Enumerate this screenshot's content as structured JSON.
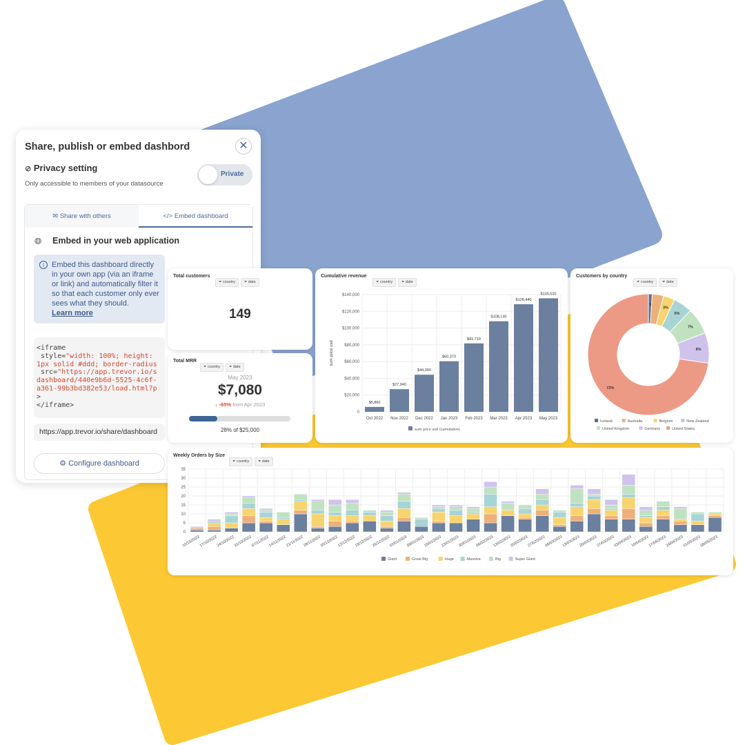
{
  "colors": {
    "blue_shape": "#8aa4cf",
    "yellow_shape": "#fcc934",
    "bar": "#6b7f9e",
    "accent": "#4a6a9a",
    "negative": "#e0442b"
  },
  "share_panel": {
    "title": "Share, publish or embed dashbord",
    "close_icon": "close-icon",
    "privacy": {
      "title": "Privacy setting",
      "subtitle": "Only accessible to members of your datasource",
      "toggle_label": "Private"
    },
    "tabs": [
      {
        "label": "Share with others",
        "icon": "mail-plus-icon"
      },
      {
        "label": "Embed dashboard",
        "icon": "code-window-icon",
        "active": true
      }
    ],
    "embed_title": "Embed in your web application",
    "info_text": "Embed this dashboard directly in your own app (via an iframe or link) and automatically filter it so that each customer only ever sees what they should.",
    "learn_more": "Learn more",
    "code": {
      "l1": "<iframe",
      "l2a": " style=",
      "l2b": "\"width: 100%; height: ",
      "l3": "1px solid #ddd; border-radius",
      "l4a": " src=",
      "l4b": "\"https://app.trevor.io/s",
      "l5": "dashboard/440e9b6d-5525-4c6f-",
      "l6": "a361-99b3bd382e53/load.html?p",
      "l7": ">",
      "l8": "</iframe>"
    },
    "share_url": "https://app.trevor.io/share/dashboard",
    "configure_label": "Configure dashboard"
  },
  "filters": {
    "country": "country",
    "date": "date"
  },
  "total_customers": {
    "title": "Total customers",
    "value": "149"
  },
  "total_mrr": {
    "title": "Total MRR",
    "period": "May 2023",
    "value": "$7,080",
    "change": "-65%",
    "change_suffix": "from Apr 2023",
    "progress_label": "28% of $25,000",
    "progress": 0.28
  },
  "chart_data": [
    {
      "type": "bar",
      "title": "Cumulative revenue",
      "ylabel": "sum price usd",
      "ylim": [
        0,
        140000
      ],
      "yticks": [
        "0",
        "$20,000",
        "$40,000",
        "$60,000",
        "$80,000",
        "$100,000",
        "$120,000",
        "$140,000"
      ],
      "categories": [
        "Oct 2022",
        "Nov 2022",
        "Dec 2022",
        "Jan 2023",
        "Feb 2023",
        "Mar 2023",
        "Apr 2023",
        "May 2023"
      ],
      "values": [
        5860,
        27040,
        44300,
        60370,
        81710,
        108130,
        128440,
        135520
      ],
      "labels": [
        "$5,860",
        "$27,040",
        "$44,300",
        "$60,370",
        "$81,710",
        "$108,130",
        "$128,440",
        "$135,520"
      ],
      "legend": "sum price usd (cumulative)",
      "grid": true
    },
    {
      "type": "pie",
      "title": "Customers by country",
      "donut": true,
      "slices": [
        {
          "name": "Iceland",
          "value": 1,
          "label": "1%",
          "color": "#5b6f94"
        },
        {
          "name": "Australia",
          "value": 3,
          "label": "",
          "color": "#eeb07a"
        },
        {
          "name": "Belgium",
          "value": 3,
          "label": "3%",
          "color": "#f8d46e"
        },
        {
          "name": "New Zealand",
          "value": 5,
          "label": "5%",
          "color": "#a9d4d6"
        },
        {
          "name": "United Kingdom",
          "value": 7,
          "label": "7%",
          "color": "#c0e2c1"
        },
        {
          "name": "Germany",
          "value": 8,
          "label": "8%",
          "color": "#cfc3ec"
        },
        {
          "name": "United States",
          "value": 72,
          "label": "72%",
          "color": "#ec9a85"
        }
      ],
      "legend": "bottom"
    },
    {
      "type": "bar",
      "stacked": true,
      "title": "Weekly Orders by Size",
      "ylim": [
        0,
        35
      ],
      "yticks": [
        0,
        5,
        10,
        15,
        20,
        25,
        30,
        35
      ],
      "grid": true,
      "legend": "bottom",
      "categories": [
        "10/10/2022",
        "17/10/2022",
        "24/10/2022",
        "31/10/2022",
        "07/11/2022",
        "14/11/2022",
        "21/11/2022",
        "28/11/2022",
        "05/12/2022",
        "12/12/2022",
        "19/12/2022",
        "26/12/2022",
        "02/01/2023",
        "09/01/2023",
        "16/01/2023",
        "23/01/2023",
        "30/01/2023",
        "06/02/2023",
        "13/02/2023",
        "20/02/2023",
        "27/02/2023",
        "06/03/2023",
        "13/03/2023",
        "20/03/2023",
        "27/03/2023",
        "03/04/2023",
        "10/04/2023",
        "17/04/2023",
        "24/04/2023",
        "01/05/2023",
        "08/05/2023"
      ],
      "series": [
        {
          "name": "Giant",
          "color": "#6b7f9e",
          "values": [
            1,
            1,
            2,
            5,
            5,
            4,
            10,
            2,
            3,
            5,
            6,
            2,
            6,
            3,
            5,
            5,
            7,
            5,
            9,
            7,
            9,
            3,
            6,
            10,
            7,
            7,
            3,
            7,
            4,
            4,
            8
          ]
        },
        {
          "name": "Great Big",
          "color": "#eeb07a",
          "values": [
            1,
            2,
            0,
            4,
            1,
            0,
            2,
            1,
            3,
            1,
            0,
            1,
            2,
            0,
            1,
            0,
            0,
            5,
            0,
            1,
            3,
            1,
            3,
            3,
            2,
            6,
            2,
            2,
            2,
            0,
            1
          ]
        },
        {
          "name": "Huge",
          "color": "#f8d46e",
          "values": [
            0,
            2,
            3,
            4,
            2,
            3,
            5,
            7,
            3,
            3,
            3,
            3,
            5,
            0,
            5,
            4,
            3,
            4,
            3,
            2,
            3,
            4,
            5,
            5,
            3,
            6,
            3,
            3,
            1,
            2,
            1
          ]
        },
        {
          "name": "Massive",
          "color": "#a9d4d6",
          "values": [
            0,
            1,
            4,
            3,
            3,
            1,
            1,
            2,
            2,
            3,
            2,
            3,
            4,
            4,
            2,
            3,
            1,
            7,
            0,
            3,
            3,
            3,
            2,
            2,
            1,
            2,
            1,
            2,
            0,
            4,
            0
          ]
        },
        {
          "name": "Big",
          "color": "#c0e2c1",
          "values": [
            0,
            0,
            1,
            3,
            1,
            3,
            3,
            5,
            4,
            4,
            1,
            2,
            4,
            1,
            1,
            2,
            2,
            4,
            4,
            2,
            3,
            1,
            8,
            1,
            2,
            5,
            3,
            3,
            6,
            1,
            1
          ]
        },
        {
          "name": "Super Giant",
          "color": "#cfc3ec",
          "values": [
            1,
            1,
            1,
            1,
            1,
            0,
            0,
            1,
            3,
            2,
            0,
            1,
            1,
            0,
            1,
            1,
            1,
            3,
            1,
            0,
            3,
            0,
            2,
            3,
            3,
            6,
            2,
            0,
            1,
            0,
            0
          ]
        }
      ]
    }
  ]
}
